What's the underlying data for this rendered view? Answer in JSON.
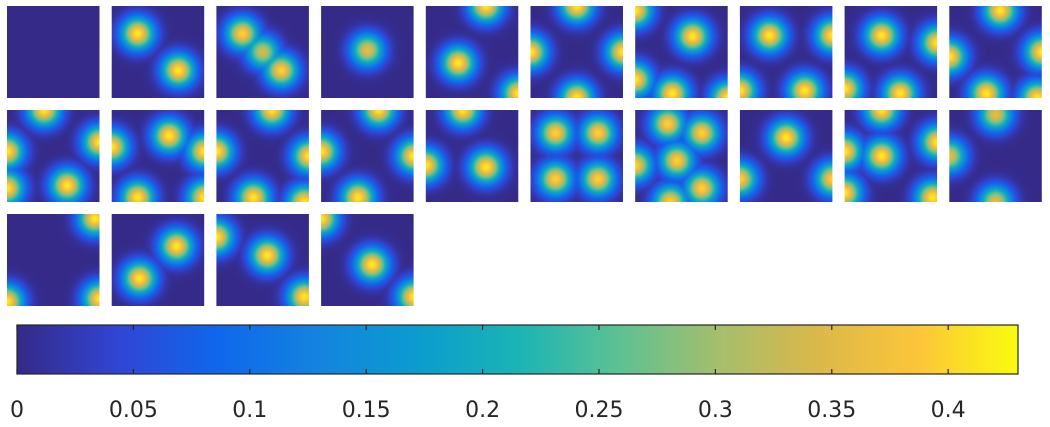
{
  "chart_data": {
    "type": "heatmap",
    "title": "",
    "xlabel": "",
    "ylabel": "",
    "layout": {
      "rows": 3,
      "cols": 10,
      "panel_count": 24
    },
    "panels": [
      {
        "index": 1,
        "peaks": []
      },
      {
        "index": 2,
        "peaks": [
          [
            0.28,
            0.3,
            0.42
          ],
          [
            0.72,
            0.7,
            0.42
          ]
        ]
      },
      {
        "index": 3,
        "peaks": [
          [
            0.28,
            0.3,
            0.4
          ],
          [
            0.7,
            0.7,
            0.4
          ],
          [
            0.5,
            0.5,
            0.34
          ]
        ]
      },
      {
        "index": 4,
        "peaks": [
          [
            0.5,
            0.48,
            0.36
          ]
        ]
      },
      {
        "index": 5,
        "peaks": [
          [
            0.65,
            0.0,
            0.42
          ],
          [
            0.35,
            0.62,
            0.42
          ],
          [
            1.0,
            0.95,
            0.42
          ]
        ]
      },
      {
        "index": 6,
        "peaks": [
          [
            0.5,
            0.0,
            0.42
          ],
          [
            0.0,
            0.5,
            0.42
          ],
          [
            1.0,
            0.5,
            0.42
          ],
          [
            0.5,
            1.0,
            0.42
          ]
        ]
      },
      {
        "index": 7,
        "peaks": [
          [
            0.62,
            0.33,
            0.42
          ],
          [
            0.0,
            0.05,
            0.42
          ],
          [
            0.4,
            0.95,
            0.42
          ],
          [
            1.0,
            1.0,
            0.42
          ],
          [
            0.0,
            0.8,
            0.42
          ]
        ]
      },
      {
        "index": 8,
        "peaks": [
          [
            0.32,
            0.32,
            0.42
          ],
          [
            1.0,
            0.32,
            0.42
          ],
          [
            0.0,
            0.92,
            0.42
          ],
          [
            0.7,
            0.92,
            0.42
          ]
        ]
      },
      {
        "index": 9,
        "peaks": [
          [
            0.4,
            0.32,
            0.42
          ],
          [
            1.0,
            0.4,
            0.42
          ],
          [
            0.0,
            0.9,
            0.42
          ],
          [
            0.6,
            0.95,
            0.42
          ]
        ]
      },
      {
        "index": 10,
        "peaks": [
          [
            0.55,
            0.05,
            0.42
          ],
          [
            0.0,
            0.55,
            0.42
          ],
          [
            1.0,
            0.5,
            0.42
          ],
          [
            0.4,
            0.95,
            0.42
          ],
          [
            0.95,
            1.0,
            0.42
          ]
        ]
      },
      {
        "index": 11,
        "peaks": [
          [
            0.4,
            0.0,
            0.42
          ],
          [
            0.0,
            0.45,
            0.42
          ],
          [
            1.0,
            0.35,
            0.42
          ],
          [
            0.65,
            0.82,
            0.42
          ],
          [
            0.0,
            0.85,
            0.42
          ]
        ]
      },
      {
        "index": 12,
        "peaks": [
          [
            0.62,
            0.28,
            0.42
          ],
          [
            0.0,
            0.4,
            0.42
          ],
          [
            1.0,
            0.45,
            0.42
          ],
          [
            0.28,
            0.95,
            0.42
          ],
          [
            1.0,
            0.95,
            0.42
          ]
        ]
      },
      {
        "index": 13,
        "peaks": [
          [
            0.6,
            0.0,
            0.42
          ],
          [
            0.0,
            0.45,
            0.42
          ],
          [
            1.0,
            0.5,
            0.42
          ],
          [
            0.4,
            0.95,
            0.42
          ],
          [
            0.95,
            1.0,
            0.42
          ]
        ]
      },
      {
        "index": 14,
        "peaks": [
          [
            0.62,
            0.0,
            0.42
          ],
          [
            0.0,
            0.45,
            0.42
          ],
          [
            1.0,
            0.5,
            0.42
          ],
          [
            0.4,
            0.95,
            0.42
          ]
        ]
      },
      {
        "index": 15,
        "peaks": [
          [
            0.4,
            0.0,
            0.42
          ],
          [
            0.65,
            0.62,
            0.42
          ],
          [
            0.0,
            0.6,
            0.42
          ]
        ]
      },
      {
        "index": 16,
        "peaks": [
          [
            0.27,
            0.25,
            0.4
          ],
          [
            0.73,
            0.25,
            0.4
          ],
          [
            0.27,
            0.75,
            0.4
          ],
          [
            0.73,
            0.75,
            0.4
          ]
        ]
      },
      {
        "index": 17,
        "peaks": [
          [
            0.35,
            0.15,
            0.4
          ],
          [
            0.72,
            0.25,
            0.4
          ],
          [
            0.45,
            0.55,
            0.4
          ],
          [
            0.0,
            0.6,
            0.4
          ],
          [
            0.72,
            0.85,
            0.4
          ],
          [
            0.38,
            1.0,
            0.4
          ]
        ]
      },
      {
        "index": 18,
        "peaks": [
          [
            0.5,
            0.3,
            0.42
          ],
          [
            0.0,
            0.75,
            0.4
          ],
          [
            1.0,
            0.75,
            0.4
          ]
        ]
      },
      {
        "index": 19,
        "peaks": [
          [
            0.4,
            0.0,
            0.42
          ],
          [
            0.0,
            0.45,
            0.42
          ],
          [
            1.0,
            0.35,
            0.42
          ],
          [
            0.4,
            0.5,
            0.42
          ],
          [
            0.0,
            0.9,
            0.42
          ],
          [
            0.95,
            0.95,
            0.42
          ]
        ]
      },
      {
        "index": 20,
        "peaks": [
          [
            0.5,
            0.05,
            0.36
          ],
          [
            0.0,
            0.5,
            0.36
          ],
          [
            0.5,
            1.0,
            0.36
          ]
        ]
      },
      {
        "index": 21,
        "peaks": [
          [
            0.95,
            0.05,
            0.42
          ],
          [
            0.0,
            0.95,
            0.42
          ],
          [
            1.0,
            0.92,
            0.42
          ]
        ]
      },
      {
        "index": 22,
        "peaks": [
          [
            0.7,
            0.35,
            0.42
          ],
          [
            0.3,
            0.7,
            0.42
          ]
        ]
      },
      {
        "index": 23,
        "peaks": [
          [
            0.0,
            0.25,
            0.42
          ],
          [
            0.55,
            0.45,
            0.42
          ],
          [
            0.95,
            0.9,
            0.42
          ]
        ]
      },
      {
        "index": 24,
        "peaks": [
          [
            0.55,
            0.55,
            0.42
          ],
          [
            1.0,
            0.9,
            0.42
          ],
          [
            0.0,
            0.05,
            0.42
          ]
        ]
      }
    ],
    "colorbar": {
      "location": "bottom",
      "range": [
        0,
        0.43
      ],
      "ticks": [
        0,
        0.05,
        0.1,
        0.15,
        0.2,
        0.25,
        0.3,
        0.35,
        0.4
      ],
      "tick_labels": [
        "0",
        "0.05",
        "0.1",
        "0.15",
        "0.2",
        "0.25",
        "0.3",
        "0.35",
        "0.4"
      ],
      "colormap": "parula",
      "colormap_stops": [
        "#352a87",
        "#3145d3",
        "#0f67ec",
        "#1483df",
        "#0b9ccf",
        "#1ab4b5",
        "#5cc194",
        "#a4be6c",
        "#dbb84a",
        "#fcc539",
        "#f9fb0e"
      ]
    }
  }
}
